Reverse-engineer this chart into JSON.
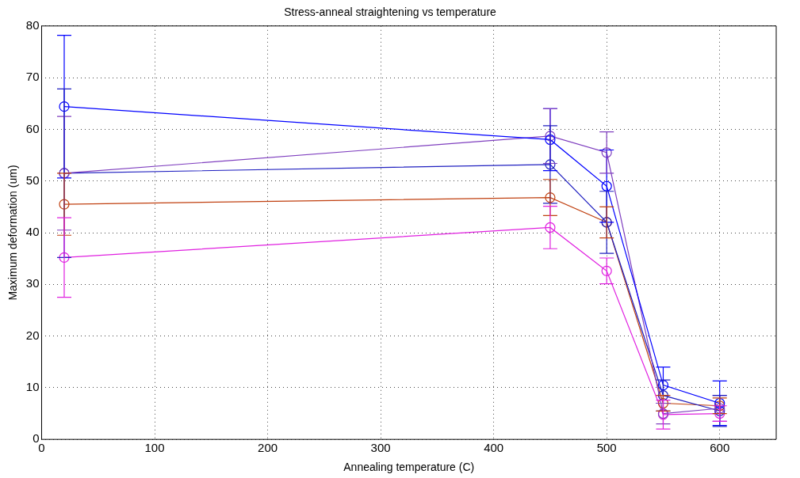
{
  "chart_data": {
    "type": "line",
    "title": "Stress-anneal straightening vs temperature",
    "xlabel": "Annealing temperature (C)",
    "ylabel": "Maximum deformation (um)",
    "x": [
      20,
      450,
      500,
      550,
      600
    ],
    "series": [
      {
        "color": "#0000ff",
        "values": [
          64.4,
          58,
          49,
          10.5,
          7
        ],
        "errors": [
          13.8,
          6,
          7,
          3.5,
          4.3
        ]
      },
      {
        "color": "#7f3fbf",
        "values": [
          51.5,
          58.7,
          55.5,
          5,
          6
        ],
        "errors": [
          11,
          5.3,
          4,
          2,
          2.5
        ]
      },
      {
        "color": "#2020c0",
        "values": [
          51.5,
          53.2,
          42,
          8.5,
          5.5
        ],
        "errors": [
          16.3,
          7.5,
          6,
          3,
          3
        ]
      },
      {
        "color": "#c04010",
        "values": [
          45.5,
          46.8,
          42,
          7,
          6.5
        ],
        "errors": [
          6,
          3.5,
          3,
          1.5,
          1.5
        ]
      },
      {
        "color": "#e020e0",
        "values": [
          35.2,
          41,
          32.6,
          4.8,
          5
        ],
        "errors": [
          7.7,
          4.1,
          2.5,
          2.8,
          1.5
        ]
      }
    ],
    "xlim": [
      0,
      650
    ],
    "xticks": [
      0,
      100,
      200,
      300,
      400,
      500,
      600
    ],
    "ylim": [
      0,
      80
    ],
    "yticks": [
      0,
      10,
      20,
      30,
      40,
      50,
      60,
      70,
      80
    ],
    "grid": true,
    "legend": false,
    "marker": "circle",
    "line_style": "solid"
  }
}
